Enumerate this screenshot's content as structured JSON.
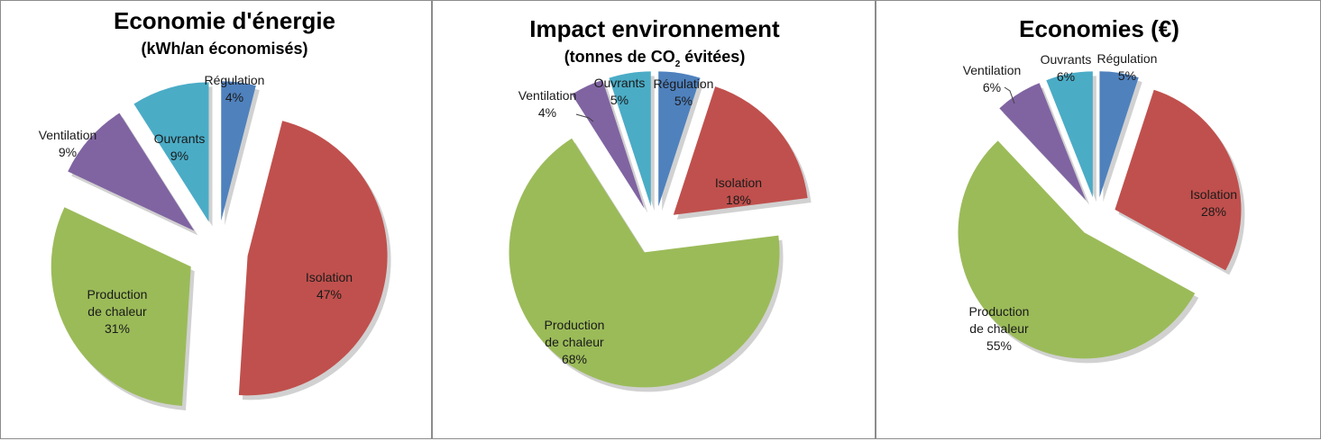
{
  "chart_data": [
    {
      "type": "pie",
      "title": "Economie d'énergie",
      "subtitle": "(kWh/an économisés)",
      "categories": [
        "Régulation",
        "Isolation",
        "Production de chaleur",
        "Ventilation",
        "Ouvrants"
      ],
      "values": [
        4,
        47,
        31,
        9,
        9
      ],
      "value_labels": [
        "4%",
        "47%",
        "31%",
        "9%",
        "9%"
      ],
      "colors": [
        "#4f81bd",
        "#c0504d",
        "#9bbb59",
        "#8064a2",
        "#4bacc6"
      ],
      "exploded": true
    },
    {
      "type": "pie",
      "title": "Impact environnement",
      "subtitle_before": "(tonnes de CO",
      "subtitle_sub": "2",
      "subtitle_after": " évitées)",
      "categories": [
        "Régulation",
        "Isolation",
        "Production de chaleur",
        "Ventilation",
        "Ouvrants"
      ],
      "values": [
        5,
        18,
        68,
        4,
        5
      ],
      "value_labels": [
        "5%",
        "18%",
        "68%",
        "4%",
        "5%"
      ],
      "colors": [
        "#4f81bd",
        "#c0504d",
        "#9bbb59",
        "#8064a2",
        "#4bacc6"
      ],
      "exploded": true
    },
    {
      "type": "pie",
      "title": "Economies (€)",
      "categories": [
        "Régulation",
        "Isolation",
        "Production de chaleur",
        "Ventilation",
        "Ouvrants"
      ],
      "values": [
        5,
        28,
        55,
        6,
        6
      ],
      "value_labels": [
        "5%",
        "28%",
        "55%",
        "6%",
        "6%"
      ],
      "colors": [
        "#4f81bd",
        "#c0504d",
        "#9bbb59",
        "#8064a2",
        "#4bacc6"
      ],
      "exploded": true
    }
  ]
}
